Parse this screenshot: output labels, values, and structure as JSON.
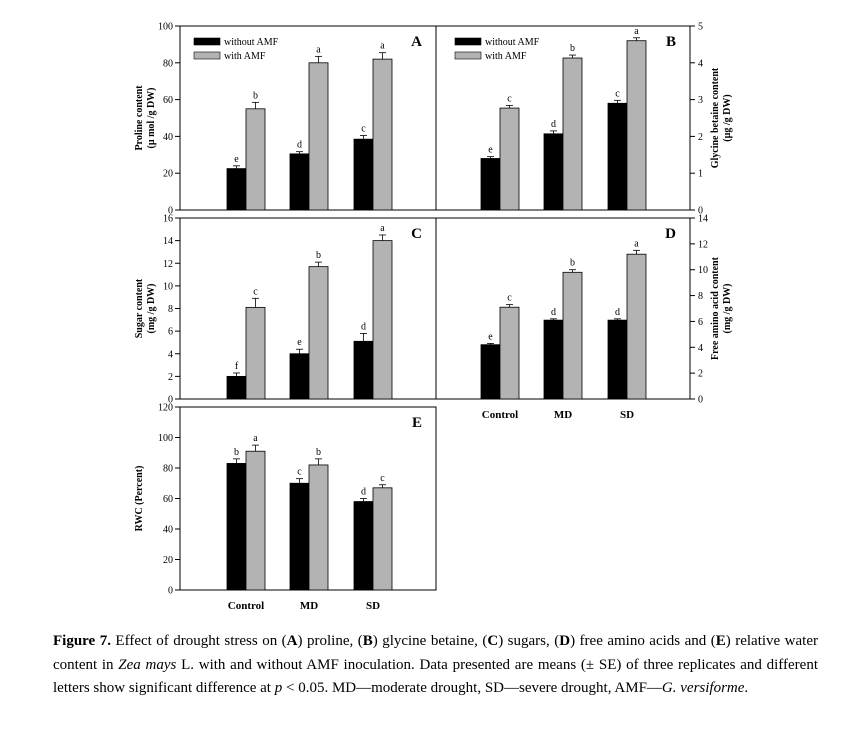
{
  "colors": {
    "without": "#000000",
    "with": "#b3b3b3",
    "axis": "#000000"
  },
  "legend": {
    "without": "without AMF",
    "with": "with AMF"
  },
  "categories": [
    "Control",
    "MD",
    "SD"
  ],
  "chart_data": [
    {
      "type": "bar",
      "panel": "A",
      "ylabel": "Proline content\n(µ mol /g DW)",
      "ylim": [
        0,
        100
      ],
      "yticks": [
        0,
        20,
        40,
        60,
        80,
        100
      ],
      "categories": [
        "Control",
        "MD",
        "SD"
      ],
      "series": [
        {
          "name": "without AMF",
          "values": [
            22.5,
            30.5,
            38.5
          ],
          "errors": [
            1.5,
            1.2,
            2.0
          ],
          "letters": [
            "e",
            "d",
            "c"
          ]
        },
        {
          "name": "with AMF",
          "values": [
            55,
            80,
            82
          ],
          "errors": [
            3.5,
            3.5,
            3.5
          ],
          "letters": [
            "b",
            "a",
            "a"
          ]
        }
      ]
    },
    {
      "type": "bar",
      "panel": "B",
      "ylabel": "Glycine betaine content\n(µg /g DW)",
      "ylim": [
        0,
        5
      ],
      "yticks": [
        0,
        1,
        2,
        3,
        4,
        5
      ],
      "categories": [
        "Control",
        "MD",
        "SD"
      ],
      "series": [
        {
          "name": "without AMF",
          "values": [
            1.4,
            2.07,
            2.9
          ],
          "errors": [
            0.05,
            0.08,
            0.08
          ],
          "letters": [
            "e",
            "d",
            "c"
          ]
        },
        {
          "name": "with AMF",
          "values": [
            2.77,
            4.13,
            4.6
          ],
          "errors": [
            0.07,
            0.08,
            0.08
          ],
          "letters": [
            "c",
            "b",
            "a"
          ]
        }
      ]
    },
    {
      "type": "bar",
      "panel": "C",
      "ylabel": "Sugar content\n(mg /g DW)",
      "ylim": [
        0,
        16
      ],
      "yticks": [
        0,
        2,
        4,
        6,
        8,
        10,
        12,
        14,
        16
      ],
      "categories": [
        "Control",
        "MD",
        "SD"
      ],
      "series": [
        {
          "name": "without AMF",
          "values": [
            2.0,
            4.0,
            5.1
          ],
          "errors": [
            0.3,
            0.4,
            0.7
          ],
          "letters": [
            "f",
            "e",
            "d"
          ]
        },
        {
          "name": "with AMF",
          "values": [
            8.1,
            11.7,
            14.0
          ],
          "errors": [
            0.8,
            0.4,
            0.5
          ],
          "letters": [
            "c",
            "b",
            "a"
          ]
        }
      ]
    },
    {
      "type": "bar",
      "panel": "D",
      "ylabel": "Free amino acid content\n(mg /g DW)",
      "ylim": [
        0,
        14
      ],
      "yticks": [
        0,
        2,
        4,
        6,
        8,
        10,
        12,
        14
      ],
      "categories": [
        "Control",
        "MD",
        "SD"
      ],
      "series": [
        {
          "name": "without AMF",
          "values": [
            4.2,
            6.1,
            6.1
          ],
          "errors": [
            0.1,
            0.1,
            0.1
          ],
          "letters": [
            "e",
            "d",
            "d"
          ]
        },
        {
          "name": "with AMF",
          "values": [
            7.1,
            9.8,
            11.2
          ],
          "errors": [
            0.2,
            0.2,
            0.3
          ],
          "letters": [
            "c",
            "b",
            "a"
          ]
        }
      ]
    },
    {
      "type": "bar",
      "panel": "E",
      "ylabel": "RWC (Percent)",
      "ylim": [
        0,
        120
      ],
      "yticks": [
        0,
        20,
        40,
        60,
        80,
        100,
        120
      ],
      "categories": [
        "Control",
        "MD",
        "SD"
      ],
      "series": [
        {
          "name": "without AMF",
          "values": [
            83,
            70,
            58
          ],
          "errors": [
            3,
            3,
            2
          ],
          "letters": [
            "b",
            "c",
            "d"
          ]
        },
        {
          "name": "with AMF",
          "values": [
            91,
            82,
            67
          ],
          "errors": [
            4,
            4,
            2
          ],
          "letters": [
            "a",
            "b",
            "c"
          ]
        }
      ]
    }
  ],
  "caption": {
    "figure_label": "Figure 7.",
    "parts": [
      {
        "t": " Effect of drought stress on (",
        "s": "n"
      },
      {
        "t": "A",
        "s": "b"
      },
      {
        "t": ") proline, (",
        "s": "n"
      },
      {
        "t": "B",
        "s": "b"
      },
      {
        "t": ") glycine betaine, (",
        "s": "n"
      },
      {
        "t": "C",
        "s": "b"
      },
      {
        "t": ") sugars, (",
        "s": "n"
      },
      {
        "t": "D",
        "s": "b"
      },
      {
        "t": ") free amino acids and (",
        "s": "n"
      },
      {
        "t": "E",
        "s": "b"
      },
      {
        "t": ") relative water content in ",
        "s": "n"
      },
      {
        "t": "Zea mays",
        "s": "i"
      },
      {
        "t": " L. with and without AMF inoculation. Data presented are means (± SE) of three replicates and different letters show significant difference at ",
        "s": "n"
      },
      {
        "t": "p",
        "s": "i"
      },
      {
        "t": " < 0.05. MD—moderate drought, SD—severe drought, AMF—",
        "s": "n"
      },
      {
        "t": "G. versiforme",
        "s": "i"
      },
      {
        "t": ".",
        "s": "n"
      }
    ]
  }
}
